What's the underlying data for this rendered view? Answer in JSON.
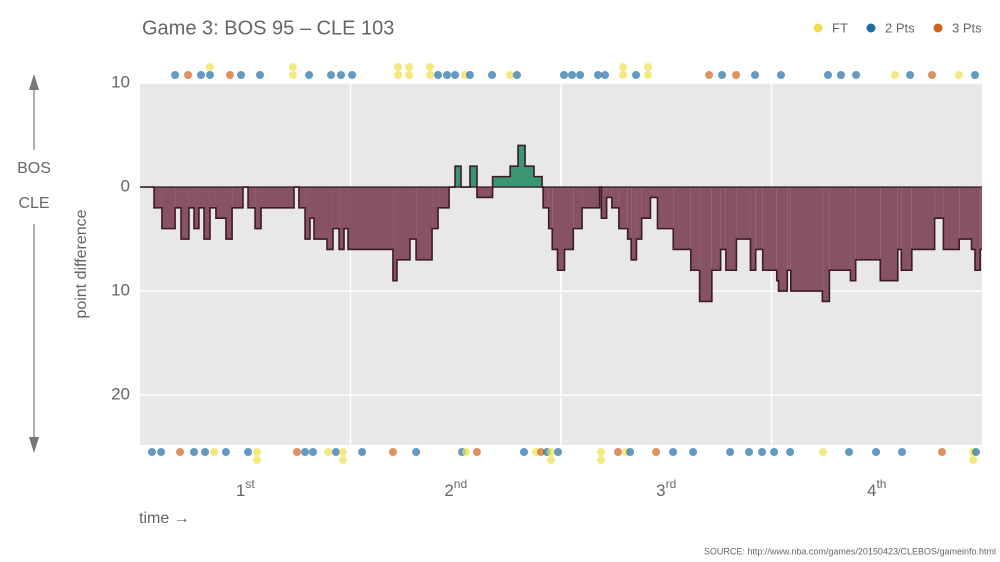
{
  "chart_data": {
    "type": "step-area",
    "title": "Game 3: BOS 95  –  CLE 103",
    "ylabel": "point difference",
    "xlabel": "time →",
    "side_labels": [
      "BOS",
      "CLE"
    ],
    "source": "SOURCE: http://www.nba.com/games/20150423/CLEBOS/gameinfo.html",
    "xlim": [
      0,
      48
    ],
    "ylim": [
      -24.8,
      10
    ],
    "yticks": [
      {
        "value": 10,
        "label": "10"
      },
      0,
      {
        "value": -10,
        "label": "10"
      },
      {
        "value": -20,
        "label": "20"
      }
    ],
    "xgrid": [
      12,
      24,
      36
    ],
    "xticks": [
      {
        "value": 6,
        "label": "1",
        "sup": "st"
      },
      {
        "value": 18,
        "label": "2",
        "sup": "nd"
      },
      {
        "value": 30,
        "label": "3",
        "sup": "rd"
      },
      {
        "value": 42,
        "label": "4",
        "sup": "th"
      }
    ],
    "grid": true,
    "fill_positive": "#3a9670",
    "fill_negative": "#875363",
    "time": [
      0,
      0.8,
      1.25,
      2.0,
      2.34,
      2.79,
      3.08,
      3.36,
      3.65,
      3.99,
      4.33,
      4.9,
      5.25,
      5.87,
      6.16,
      6.56,
      6.9,
      8.78,
      9.06,
      9.41,
      9.69,
      9.92,
      10.66,
      11.0,
      11.35,
      11.63,
      11.86,
      14.42,
      14.65,
      15.39,
      15.74,
      16.65,
      16.99,
      17.62,
      17.96,
      18.3,
      18.81,
      19.21,
      20.1,
      21.1,
      21.55,
      21.95,
      22.46,
      22.92,
      22.98,
      23.3,
      23.5,
      23.8,
      24.2,
      24.7,
      25.2,
      26.2,
      26.3,
      26.6,
      26.9,
      27.3,
      27.8,
      28.0,
      28.3,
      28.6,
      29.1,
      29.5,
      30.4,
      31.4,
      31.9,
      32.6,
      33.1,
      33.4,
      34.0,
      34.8,
      35.1,
      35.5,
      36.3,
      36.4,
      36.9,
      37.1,
      38.9,
      39.3,
      40.5,
      40.8,
      42.2,
      43.2,
      43.4,
      44.0,
      45.3,
      45.8,
      46.7,
      47.4,
      47.6,
      47.9
    ],
    "diff": [
      0,
      -2,
      -4,
      -2,
      -5,
      -2,
      -4,
      -2,
      -5,
      -2,
      -3,
      -5,
      -2,
      0,
      -2,
      -4,
      -2,
      0,
      -2,
      -5,
      -3,
      -5,
      -6,
      -4,
      -6,
      -4,
      -6,
      -9,
      -7,
      -5,
      -7,
      -4,
      -2,
      0,
      2,
      0,
      2,
      -1,
      1,
      2,
      4,
      2,
      1,
      0,
      -2,
      -4,
      -6,
      -8,
      -6,
      -4,
      -2,
      0,
      -3,
      -1,
      -2,
      -4,
      -5,
      -7,
      -5,
      -3,
      -1,
      -4,
      -6,
      -8,
      -11,
      -8,
      -6,
      -8,
      -5,
      -8,
      -6,
      -8,
      -9,
      -10,
      -8,
      -10,
      -11,
      -8,
      -9,
      -7,
      -9,
      -6,
      -8,
      -6,
      -3,
      -6,
      -5,
      -6,
      -8,
      -6
    ],
    "legend": [
      {
        "name": "FT",
        "color": "#eee04a"
      },
      {
        "name": "2 Pts",
        "color": "#1f6fa6"
      },
      {
        "name": "3 Pts",
        "color": "#d2631e"
      }
    ],
    "scoring": [
      {
        "team": "BOS",
        "times": [
          2.0,
          2.74,
          3.48,
          3.99,
          3.99,
          5.13,
          5.76,
          6.84,
          8.72,
          8.72,
          9.64,
          10.89,
          11.46,
          12.09,
          14.71,
          14.71,
          15.34,
          15.34,
          16.53,
          16.53,
          16.99,
          17.5,
          17.96,
          18.53,
          18.81,
          20.07,
          21.09,
          21.49,
          24.17,
          24.63,
          25.09,
          26.11,
          26.51,
          27.54,
          27.54,
          28.28,
          28.96,
          28.96,
          32.44,
          33.18,
          33.98,
          35.06,
          36.54,
          39.22,
          39.96,
          40.82,
          43.04,
          43.9,
          45.15,
          46.69,
          47.6
        ],
        "points": [
          2,
          3,
          2,
          2,
          1,
          3,
          2,
          2,
          1,
          1,
          2,
          2,
          2,
          2,
          1,
          1,
          1,
          1,
          1,
          1,
          2,
          2,
          2,
          1,
          2,
          2,
          1,
          2,
          2,
          2,
          2,
          2,
          2,
          1,
          1,
          2,
          1,
          1,
          3,
          2,
          3,
          2,
          2,
          2,
          2,
          2,
          1,
          2,
          3,
          1,
          2
        ]
      },
      {
        "team": "CLE",
        "times": [
          0.68,
          1.2,
          2.28,
          3.08,
          3.71,
          4.22,
          4.9,
          6.16,
          6.67,
          6.67,
          8.95,
          9.41,
          9.86,
          10.72,
          11.17,
          11.57,
          11.57,
          12.66,
          14.42,
          15.74,
          18.36,
          18.59,
          19.21,
          21.89,
          22.58,
          22.86,
          23.2,
          23.43,
          23.43,
          23.83,
          26.28,
          26.28,
          27.25,
          27.71,
          27.94,
          29.42,
          30.39,
          31.53,
          33.64,
          34.72,
          35.46,
          36.15,
          37.06,
          38.94,
          40.42,
          41.96,
          43.44,
          45.72,
          47.49,
          47.49,
          47.66
        ],
        "points": [
          2,
          2,
          3,
          2,
          2,
          1,
          2,
          2,
          1,
          1,
          3,
          2,
          2,
          1,
          2,
          1,
          1,
          2,
          3,
          2,
          2,
          1,
          3,
          2,
          1,
          3,
          2,
          1,
          1,
          2,
          1,
          1,
          3,
          1,
          2,
          3,
          2,
          2,
          2,
          2,
          2,
          2,
          2,
          1,
          2,
          2,
          2,
          3,
          1,
          1,
          2
        ]
      }
    ]
  }
}
